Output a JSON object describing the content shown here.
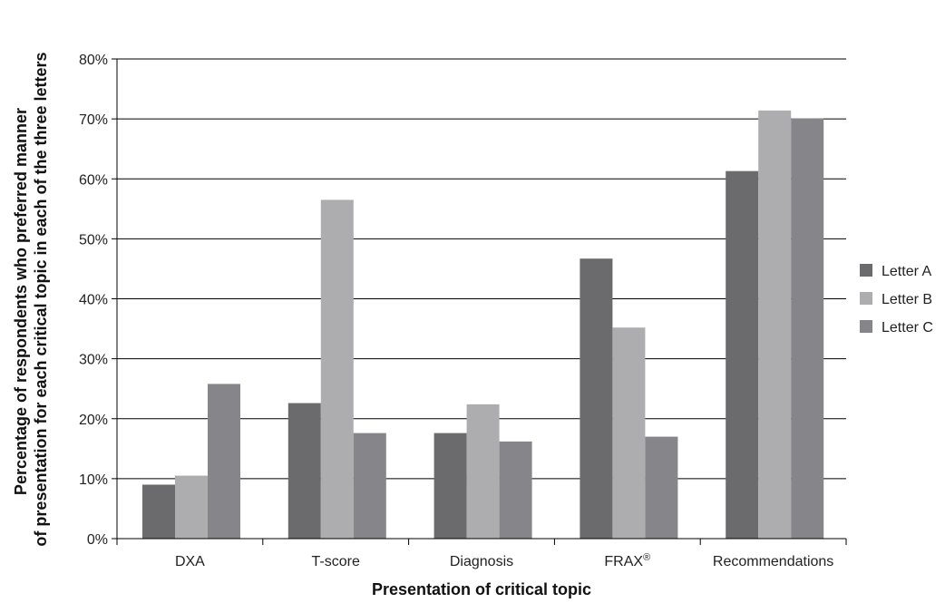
{
  "chart_data": {
    "type": "bar",
    "title": "",
    "xlabel": "Presentation of critical topic",
    "ylabel_lines": [
      "Percentage of respondents who preferred manner",
      "of presentation for each critical topic in each of the three letters"
    ],
    "categories": [
      "DXA",
      "T-score",
      "Diagnosis",
      "FRAX",
      "Recommendations"
    ],
    "category_superscripts": [
      "",
      "",
      "",
      "®",
      ""
    ],
    "series": [
      {
        "name": "Letter A",
        "color": "#6b6b6d",
        "values": [
          9,
          22.6,
          17.6,
          46.7,
          61.3
        ]
      },
      {
        "name": "Letter B",
        "color": "#adadb0",
        "values": [
          10.5,
          56.5,
          22.4,
          35.2,
          71.4
        ]
      },
      {
        "name": "Letter C",
        "color": "#86868a",
        "values": [
          25.8,
          17.6,
          16.2,
          17.0,
          70.1
        ]
      }
    ],
    "ylim": [
      0,
      80
    ],
    "yticks": [
      0,
      10,
      20,
      30,
      40,
      50,
      60,
      70,
      80
    ],
    "ytick_labels": [
      "0%",
      "10%",
      "20%",
      "30%",
      "40%",
      "50%",
      "60%",
      "70%",
      "80%"
    ],
    "grid": true,
    "legend_position": "right"
  }
}
